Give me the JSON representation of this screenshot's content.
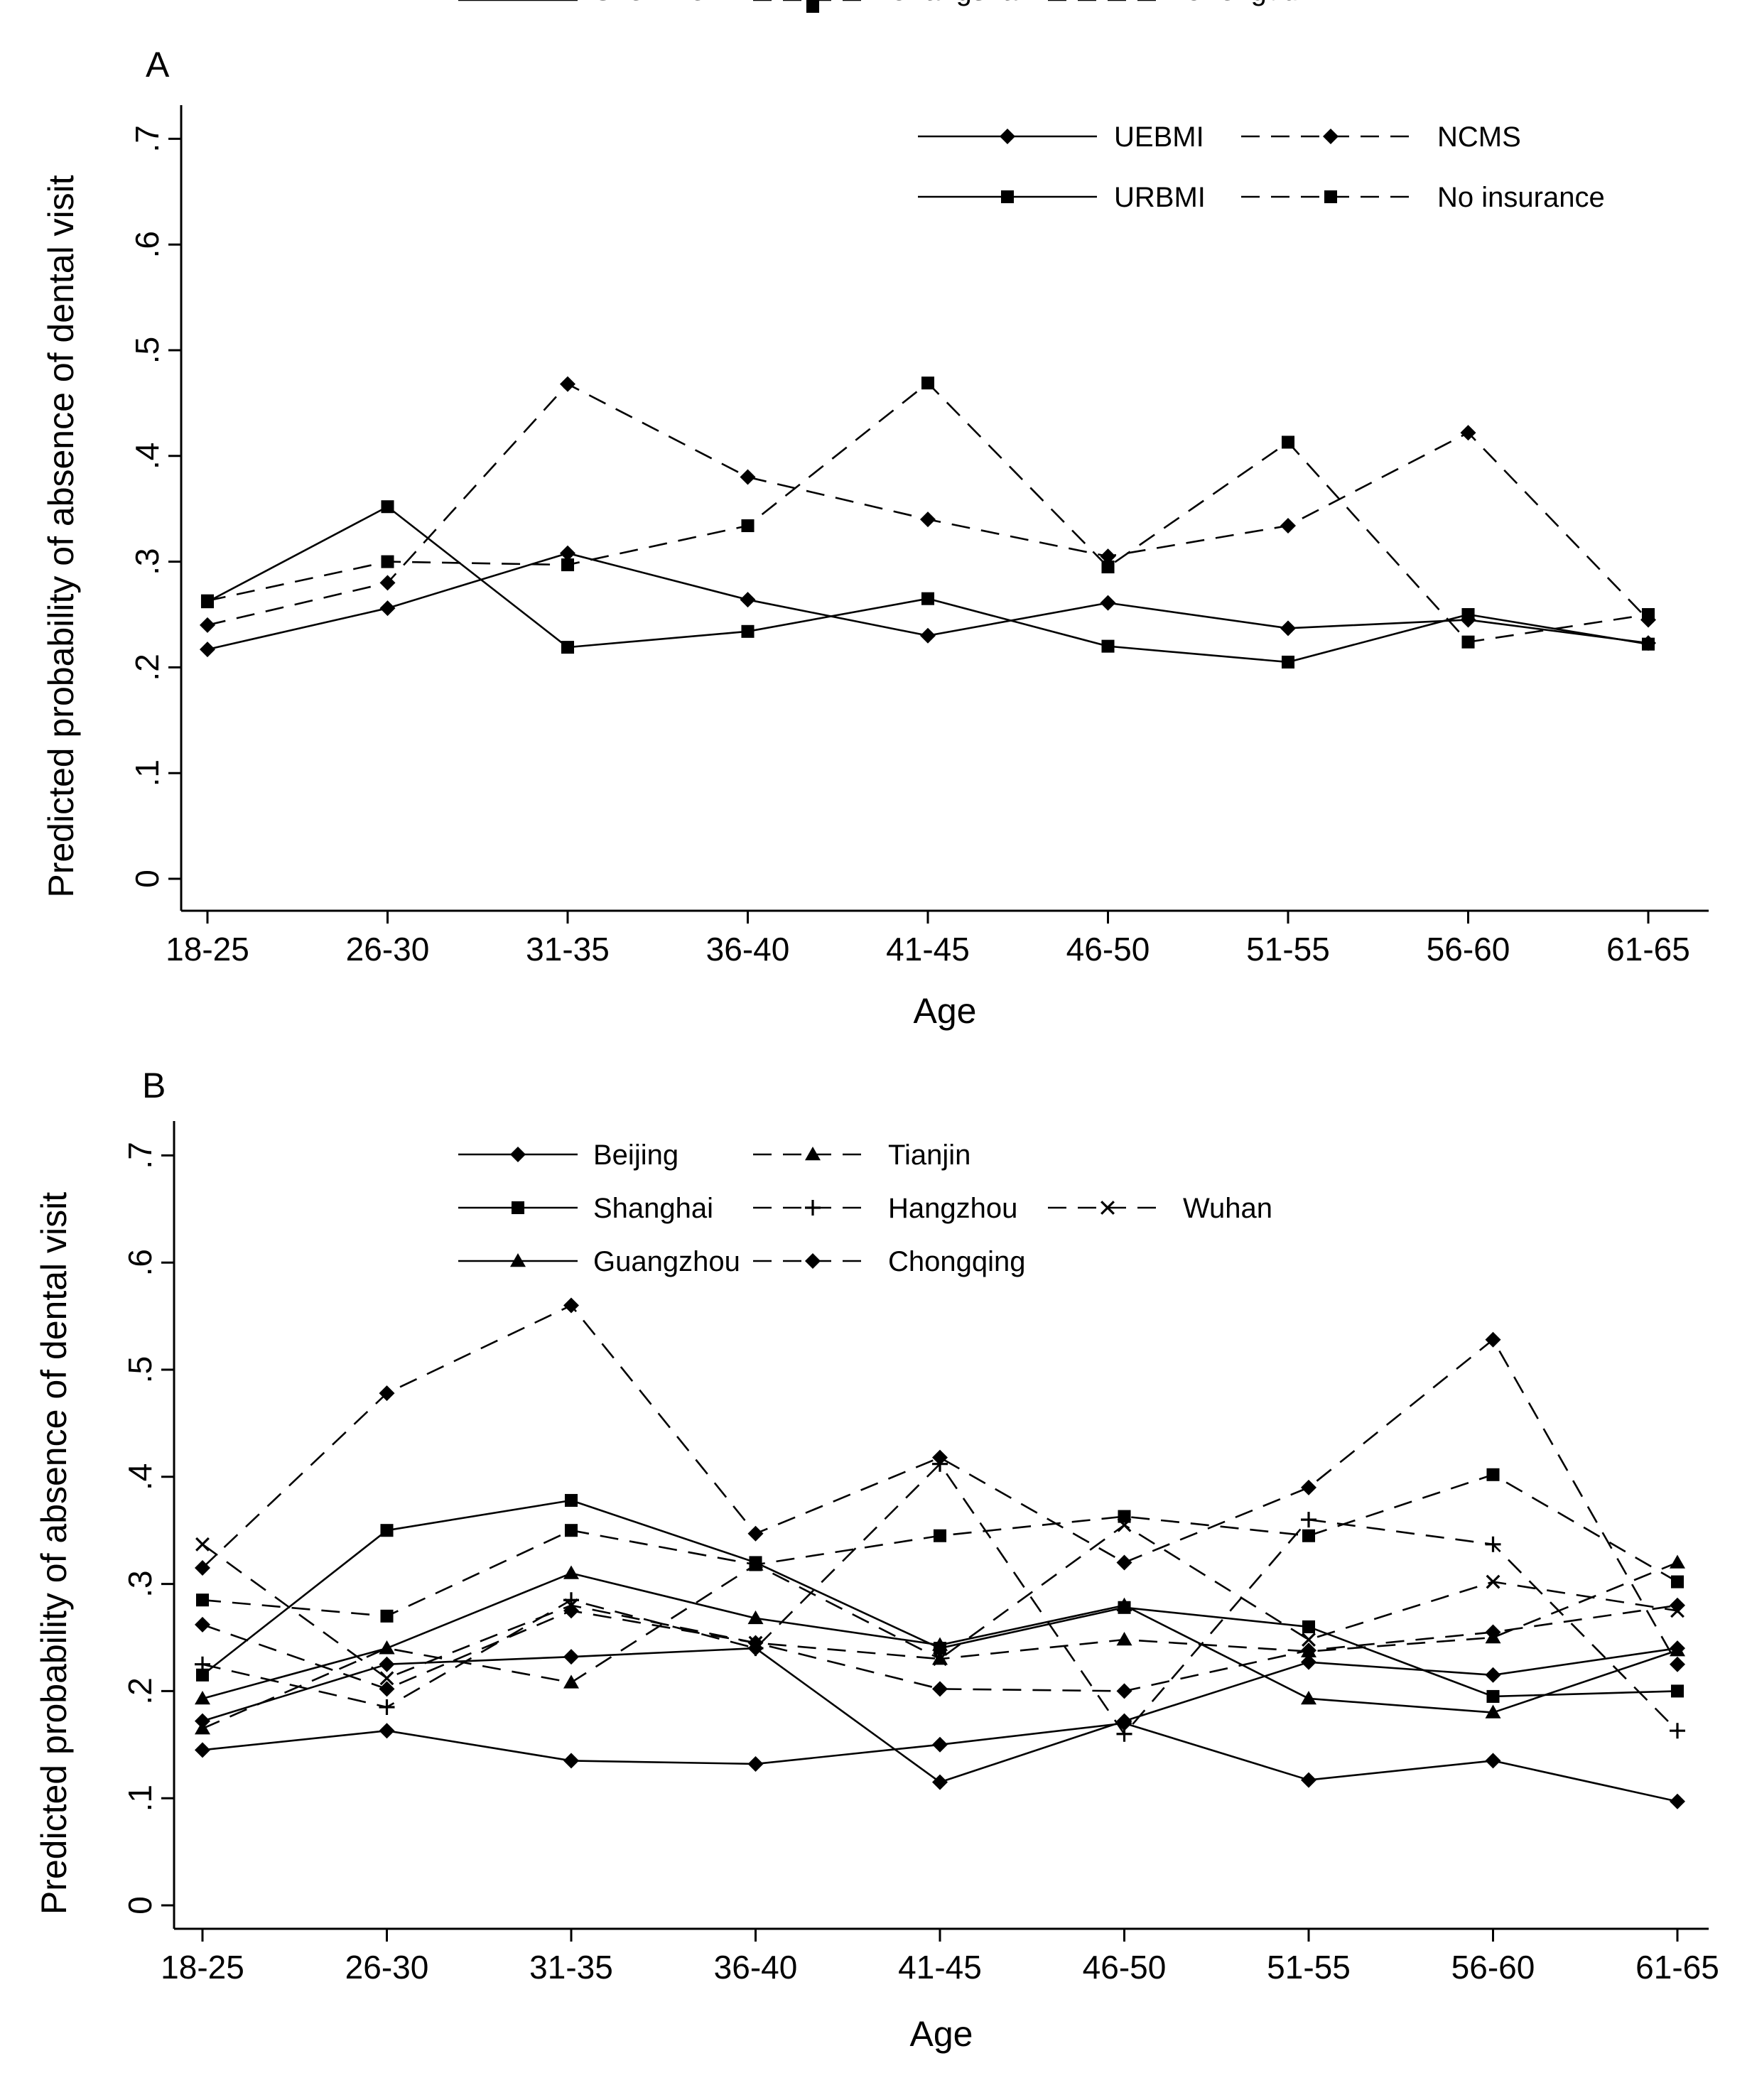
{
  "chart_data": [
    {
      "type": "line",
      "panel_label": "A",
      "categories": [
        "18-25",
        "26-30",
        "31-35",
        "36-40",
        "41-45",
        "46-50",
        "51-55",
        "56-60",
        "61-65"
      ],
      "xlabel": "Age",
      "ylabel": "Predicted probability of absence of dental visit",
      "ylim": [
        0,
        0.7
      ],
      "yticks": [
        "0",
        ".1",
        ".2",
        ".3",
        ".4",
        ".5",
        ".6",
        ".7"
      ],
      "grid": false,
      "legend_position": "top-right",
      "series": [
        {
          "name": "UEBMI",
          "style": "solid",
          "marker": "diamond",
          "values": [
            0.217,
            0.256,
            0.308,
            0.264,
            0.23,
            0.261,
            0.237,
            0.245,
            0.223
          ]
        },
        {
          "name": "NCMS",
          "style": "dashed",
          "marker": "diamond",
          "values": [
            0.24,
            0.28,
            0.468,
            0.38,
            0.34,
            0.305,
            0.334,
            0.422,
            0.245
          ]
        },
        {
          "name": "URBMI",
          "style": "solid",
          "marker": "square",
          "values": [
            0.262,
            0.352,
            0.219,
            0.234,
            0.265,
            0.22,
            0.205,
            0.25,
            0.222
          ]
        },
        {
          "name": "No insurance",
          "style": "dashed",
          "marker": "square",
          "values": [
            0.263,
            0.3,
            0.297,
            0.334,
            0.469,
            0.295,
            0.413,
            0.224,
            0.25
          ]
        }
      ]
    },
    {
      "type": "line",
      "panel_label": "B",
      "categories": [
        "18-25",
        "26-30",
        "31-35",
        "36-40",
        "41-45",
        "46-50",
        "51-55",
        "56-60",
        "61-65"
      ],
      "xlabel": "Age",
      "ylabel": "Predicted probability of absence of dental visit",
      "ylim": [
        0,
        0.7
      ],
      "yticks": [
        "0",
        ".1",
        ".2",
        ".3",
        ".4",
        ".5",
        ".6",
        ".7"
      ],
      "grid": false,
      "legend_position": "top-right",
      "series": [
        {
          "name": "Beijing",
          "style": "solid",
          "marker": "diamond",
          "values": [
            0.145,
            0.163,
            0.135,
            0.132,
            0.15,
            0.17,
            0.117,
            0.135,
            0.097
          ]
        },
        {
          "name": "Shanghai",
          "style": "solid",
          "marker": "square",
          "values": [
            0.215,
            0.35,
            0.378,
            0.32,
            0.24,
            0.278,
            0.26,
            0.195,
            0.2
          ]
        },
        {
          "name": "Guangzhou",
          "style": "solid",
          "marker": "triangle",
          "values": [
            0.193,
            0.24,
            0.31,
            0.268,
            0.243,
            0.28,
            0.193,
            0.18,
            0.238
          ]
        },
        {
          "name": "Shenzhen",
          "style": "solid",
          "marker": "diamond",
          "values": [
            0.172,
            0.225,
            0.232,
            0.24,
            0.115,
            0.172,
            0.227,
            0.215,
            0.24
          ]
        },
        {
          "name": "Tianjin",
          "style": "dashed",
          "marker": "triangle",
          "values": [
            0.165,
            0.24,
            0.208,
            0.318,
            0.23,
            0.248,
            0.237,
            0.25,
            0.32
          ]
        },
        {
          "name": "Hangzhou",
          "style": "dashed",
          "marker": "plus",
          "values": [
            0.225,
            0.185,
            0.285,
            0.24,
            0.412,
            0.16,
            0.36,
            0.337,
            0.163
          ]
        },
        {
          "name": "Chongqing",
          "style": "dashed",
          "marker": "diamond",
          "values": [
            0.315,
            0.478,
            0.56,
            0.347,
            0.418,
            0.32,
            0.39,
            0.528,
            0.225
          ]
        },
        {
          "name": "Changsha",
          "style": "dashed",
          "marker": "square",
          "values": [
            0.285,
            0.27,
            0.35,
            0.318,
            0.345,
            0.363,
            0.345,
            0.402,
            0.302
          ]
        },
        {
          "name": "Wuhan",
          "style": "dashed",
          "marker": "x",
          "values": [
            0.337,
            0.212,
            0.28,
            0.245,
            0.23,
            0.355,
            0.248,
            0.302,
            0.275
          ]
        },
        {
          "name": "Chengdu",
          "style": "dashed",
          "marker": "diamond",
          "values": [
            0.262,
            0.202,
            0.275,
            0.245,
            0.202,
            0.2,
            0.238,
            0.255,
            0.28
          ]
        }
      ]
    }
  ]
}
